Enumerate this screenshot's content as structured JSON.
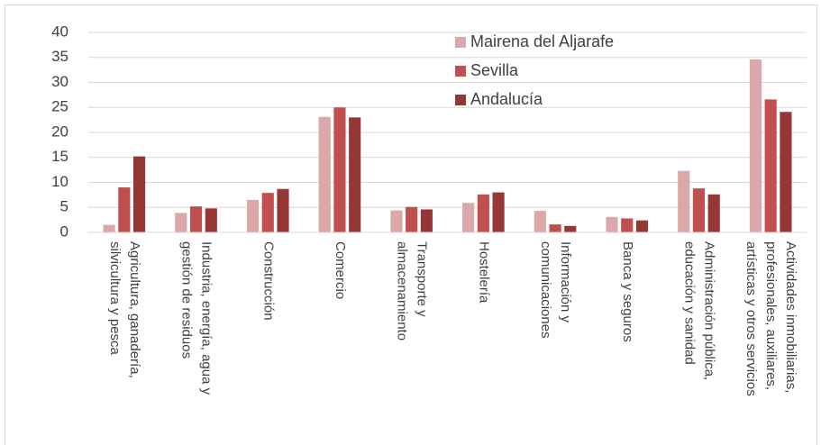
{
  "chart_data": {
    "type": "bar",
    "categories": [
      [
        "Agricultura, ganadería,",
        "silvicultura y pesca"
      ],
      [
        "Industria, energía, agua y",
        "gestión de residuos"
      ],
      [
        "Construcción"
      ],
      [
        "Comercio"
      ],
      [
        "Transporte y",
        "almacenamiento"
      ],
      [
        "Hostelería"
      ],
      [
        "Información y",
        "comunicaciones"
      ],
      [
        "Banca y seguros"
      ],
      [
        "Administración pública,",
        "educación y sanidad"
      ],
      [
        "Actividades inmobiliarias,",
        "profesionales, auxiliares,",
        "artísticas y otros servicios"
      ]
    ],
    "series": [
      {
        "name": "Mairena del Aljarafe",
        "color": "#dba7a9",
        "values": [
          1.5,
          3.9,
          6.5,
          23.1,
          4.4,
          5.9,
          4.3,
          3.1,
          12.3,
          34.6
        ]
      },
      {
        "name": "Sevilla",
        "color": "#c0504d",
        "values": [
          9,
          5.2,
          7.9,
          25,
          5.1,
          7.6,
          1.6,
          2.8,
          8.8,
          26.6
        ]
      },
      {
        "name": "Andalucía",
        "color": "#953735",
        "values": [
          15.2,
          4.8,
          8.7,
          23,
          4.6,
          8,
          1.3,
          2.4,
          7.6,
          24.1
        ]
      }
    ],
    "ylim": [
      0,
      40
    ],
    "yticks": [
      0,
      5,
      10,
      15,
      20,
      25,
      30,
      35,
      40
    ],
    "grid": true,
    "legend": "top-right"
  }
}
